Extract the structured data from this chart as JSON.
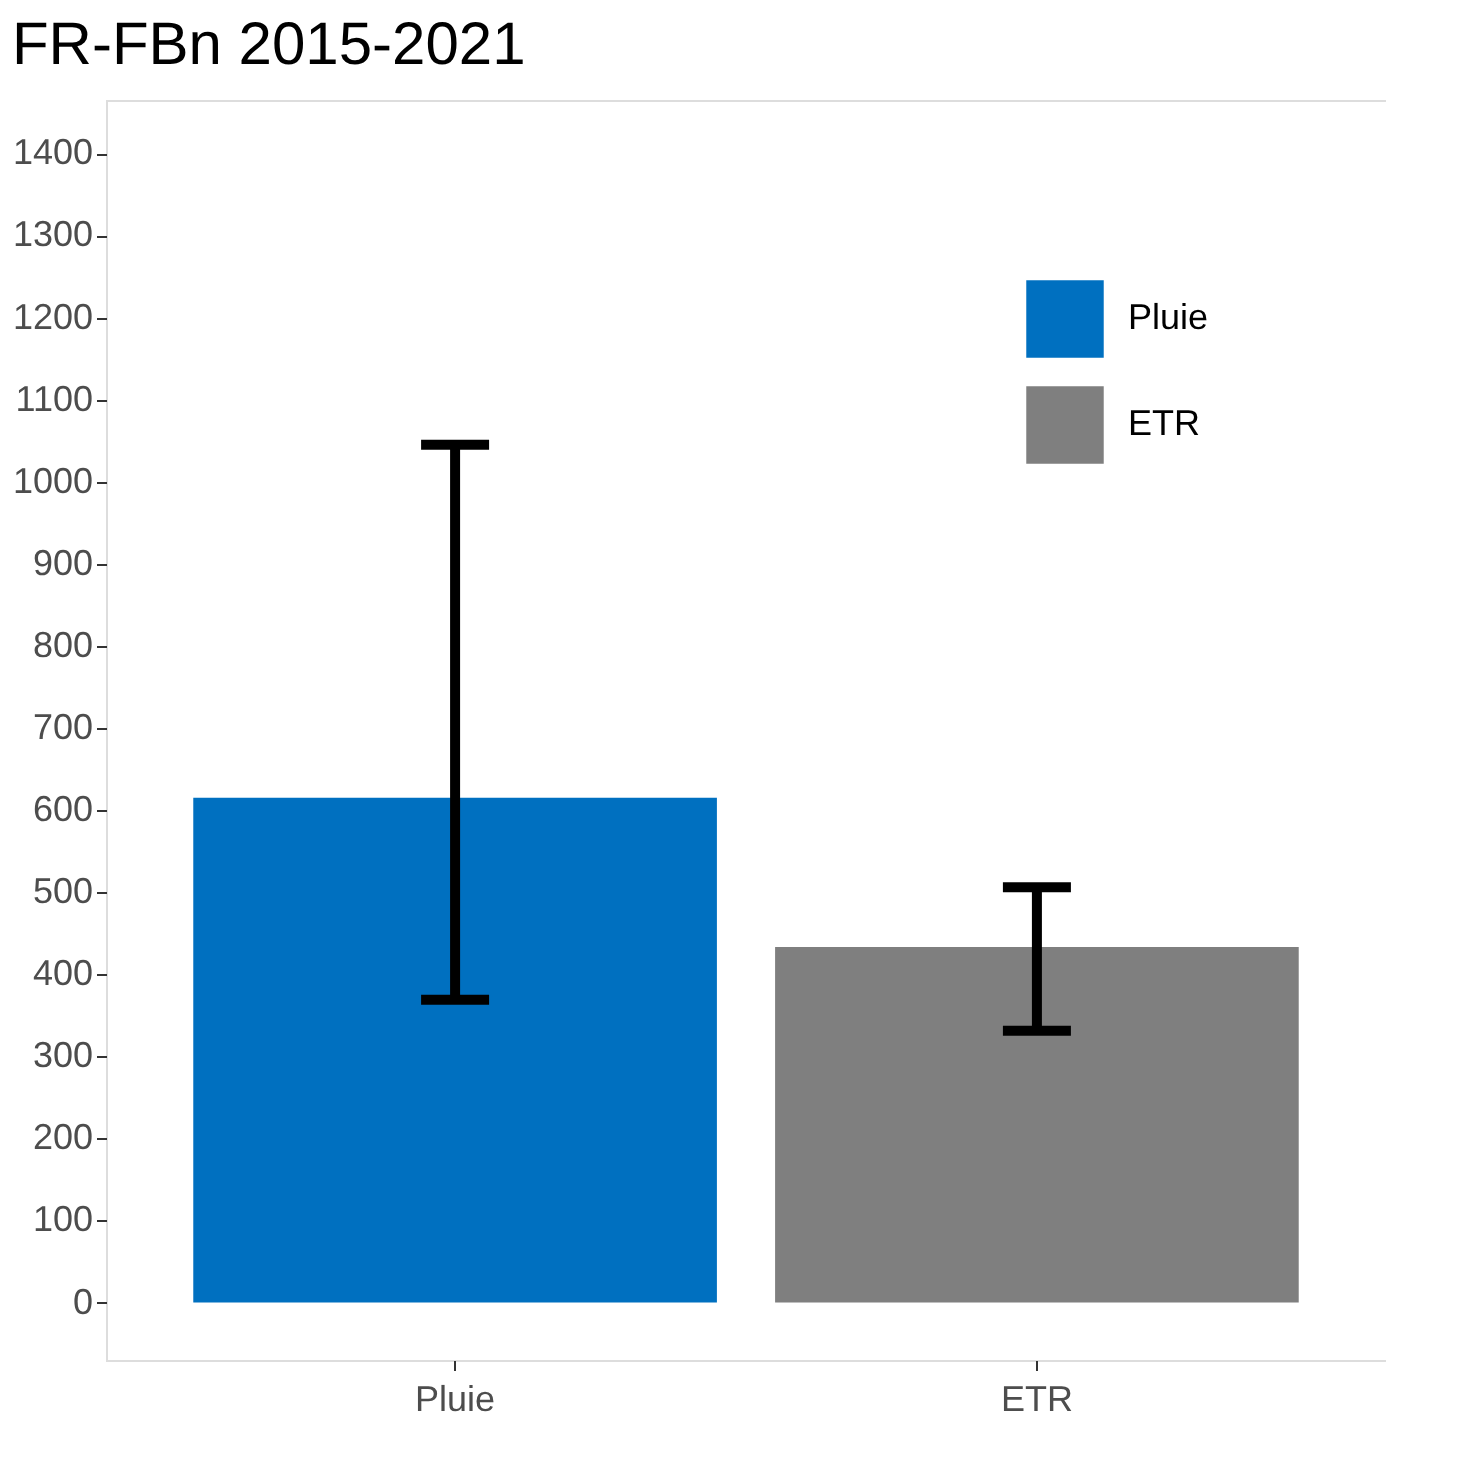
{
  "chart_data": {
    "type": "bar",
    "title": "FR-FBn 2015-2021",
    "categories": [
      "Pluie",
      "ETR"
    ],
    "series": [
      {
        "name": "Pluie",
        "color": "#0070c0",
        "values": [
          615,
          null
        ],
        "errors": [
          [
            369,
            1045
          ],
          null
        ]
      },
      {
        "name": "ETR",
        "color": "#7f7f7f",
        "values": [
          null,
          433
        ],
        "errors": [
          null,
          [
            331,
            506
          ]
        ]
      }
    ],
    "ylim": [
      -70,
      1465
    ],
    "yticks": [
      0,
      100,
      200,
      300,
      400,
      500,
      600,
      700,
      800,
      900,
      {
        "value": 1000,
        "label": "1000"
      },
      {
        "value": 1100,
        "label": "1100"
      },
      {
        "value": 1200,
        "label": "1200"
      },
      {
        "value": 1300,
        "label": "1300"
      },
      {
        "value": 1400,
        "label": "1400"
      }
    ],
    "grid": false,
    "legend": "top right"
  }
}
